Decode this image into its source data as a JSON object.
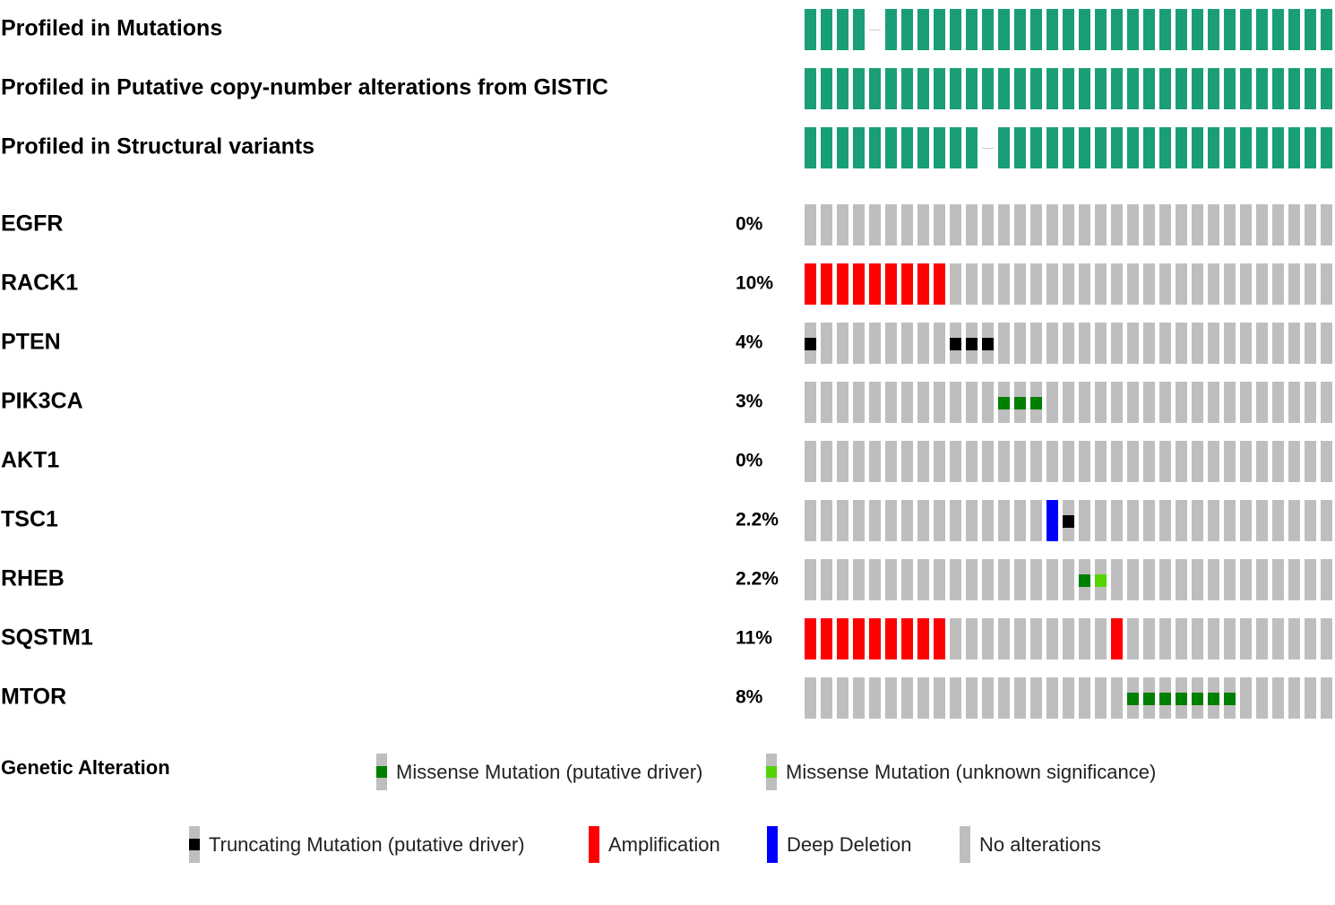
{
  "chart_data": {
    "type": "oncoprint",
    "n_samples": 33,
    "colors": {
      "profiled": "#1a9e77",
      "no_alteration": "#bebebe",
      "amplification": "#ff0000",
      "deep_deletion": "#0000ff",
      "truncating_driver": "#000000",
      "missense_driver": "#008000",
      "missense_unknown": "#53d400"
    },
    "profile_tracks": [
      {
        "label": "Profiled in Mutations",
        "not_profiled": [
          4
        ]
      },
      {
        "label": "Profiled in Putative copy-number alterations from GISTIC",
        "not_profiled": []
      },
      {
        "label": "Profiled in Structural variants",
        "not_profiled": [
          11
        ]
      }
    ],
    "gene_tracks": [
      {
        "gene": "EGFR",
        "percent": "0%",
        "amplification": [],
        "deep_deletion": [],
        "truncating_driver": [],
        "missense_driver": [],
        "missense_unknown": []
      },
      {
        "gene": "RACK1",
        "percent": "10%",
        "amplification": [
          0,
          1,
          2,
          3,
          4,
          5,
          6,
          7,
          8
        ],
        "deep_deletion": [],
        "truncating_driver": [],
        "missense_driver": [],
        "missense_unknown": []
      },
      {
        "gene": "PTEN",
        "percent": "4%",
        "amplification": [],
        "deep_deletion": [],
        "truncating_driver": [
          0,
          9,
          10,
          11
        ],
        "missense_driver": [],
        "missense_unknown": []
      },
      {
        "gene": "PIK3CA",
        "percent": "3%",
        "amplification": [],
        "deep_deletion": [],
        "truncating_driver": [],
        "missense_driver": [
          12,
          13,
          14
        ],
        "missense_unknown": []
      },
      {
        "gene": "AKT1",
        "percent": "0%",
        "amplification": [],
        "deep_deletion": [],
        "truncating_driver": [],
        "missense_driver": [],
        "missense_unknown": []
      },
      {
        "gene": "TSC1",
        "percent": "2.2%",
        "amplification": [],
        "deep_deletion": [
          15
        ],
        "truncating_driver": [
          16
        ],
        "missense_driver": [],
        "missense_unknown": []
      },
      {
        "gene": "RHEB",
        "percent": "2.2%",
        "amplification": [],
        "deep_deletion": [],
        "truncating_driver": [],
        "missense_driver": [
          17
        ],
        "missense_unknown": [
          18
        ]
      },
      {
        "gene": "SQSTM1",
        "percent": "11%",
        "amplification": [
          0,
          1,
          2,
          3,
          4,
          5,
          6,
          7,
          8,
          19
        ],
        "deep_deletion": [],
        "truncating_driver": [],
        "missense_driver": [],
        "missense_unknown": []
      },
      {
        "gene": "MTOR",
        "percent": "8%",
        "amplification": [],
        "deep_deletion": [],
        "truncating_driver": [],
        "missense_driver": [
          20,
          21,
          22,
          23,
          24,
          25,
          26
        ],
        "missense_unknown": []
      }
    ],
    "legend": {
      "title": "Genetic Alteration",
      "items": [
        {
          "type": "missense_driver",
          "label": "Missense Mutation (putative driver)"
        },
        {
          "type": "missense_unknown",
          "label": "Missense Mutation (unknown significance)"
        },
        {
          "type": "truncating_driver",
          "label": "Truncating Mutation (putative driver)"
        },
        {
          "type": "amplification",
          "label": "Amplification"
        },
        {
          "type": "deep_deletion",
          "label": "Deep Deletion"
        },
        {
          "type": "no_alteration",
          "label": "No alterations"
        }
      ]
    }
  }
}
